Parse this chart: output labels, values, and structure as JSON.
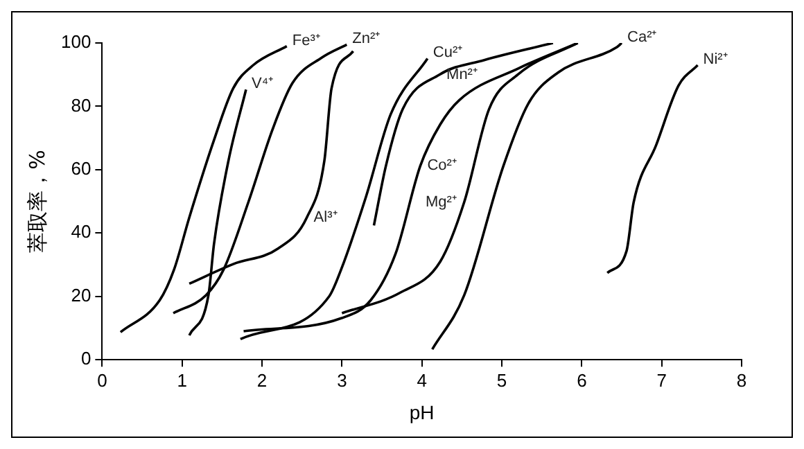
{
  "chart_data": {
    "type": "line",
    "xlabel": "pH",
    "ylabel": "萃取率，%",
    "xlim": [
      0,
      8
    ],
    "xticks": [
      0,
      1,
      2,
      3,
      4,
      5,
      6,
      7,
      8
    ],
    "ylim": [
      0,
      100
    ],
    "yticks": [
      0,
      20,
      40,
      60,
      80,
      100
    ],
    "grid": false,
    "legend": false,
    "marker": "none",
    "line_style": "solid",
    "series": [
      {
        "name": "Fe³⁺",
        "color": "#000000",
        "x": [
          0.23,
          0.72,
          0.9,
          1.09,
          1.4,
          1.64,
          1.89,
          2.31
        ],
        "values": [
          8.7,
          18.8,
          28.5,
          44.9,
          69.4,
          85.7,
          93,
          99
        ]
      },
      {
        "name": "V⁴⁺",
        "color": "#000000",
        "x": [
          1.09,
          1.33,
          1.4,
          1.58,
          1.8
        ],
        "values": [
          7.7,
          20.4,
          36.7,
          62.8,
          85.3
        ]
      },
      {
        "name": "Zn²⁺",
        "color": "#000000",
        "x": [
          0.89,
          1.3,
          1.52,
          1.83,
          2.13,
          2.38,
          2.75,
          3.06
        ],
        "values": [
          14.7,
          20.4,
          28.5,
          49.8,
          72.6,
          87.3,
          95.4,
          99.5
        ]
      },
      {
        "name": "Al³⁺",
        "color": "#000000",
        "x": [
          1.09,
          1.64,
          2.2,
          2.56,
          2.78,
          2.87,
          3.14
        ],
        "values": [
          24,
          30.2,
          35.1,
          44.9,
          62.8,
          85.7,
          97.4
        ]
      },
      {
        "name": "Cu²⁺",
        "color": "#000000",
        "x": [
          1.73,
          2.84,
          2.99,
          3.3,
          3.61,
          4.07
        ],
        "values": [
          6.5,
          20,
          28.5,
          51.4,
          77.5,
          95.1
        ]
      },
      {
        "name": "Mn²⁺",
        "color": "#000000",
        "x": [
          3.4,
          3.55,
          3.76,
          4.22,
          4.78,
          5.64
        ],
        "values": [
          42.4,
          61.2,
          79.1,
          90,
          94.6,
          100
        ]
      },
      {
        "name": "Co²⁺",
        "color": "#000000",
        "x": [
          1.77,
          2.99,
          3.36,
          3.67,
          3.98,
          4.23,
          4.47,
          5.21,
          5.95
        ],
        "values": [
          9,
          13.1,
          18.8,
          33.4,
          61.2,
          74.3,
          82,
          92,
          100
        ]
      },
      {
        "name": "Mg²⁺",
        "color": "#000000",
        "x": [
          3,
          3.73,
          4.23,
          4.53,
          4.84,
          5.2,
          5.95
        ],
        "values": [
          14.7,
          21.2,
          31,
          49.8,
          79.1,
          90,
          100
        ]
      },
      {
        "name": "Ca²⁺",
        "color": "#000000",
        "x": [
          4.13,
          4.53,
          5.02,
          5.33,
          5.7,
          6.44,
          6.5
        ],
        "values": [
          3.3,
          20.4,
          61.2,
          80.8,
          90.6,
          98.7,
          100
        ]
      },
      {
        "name": "Ni²⁺",
        "color": "#000000",
        "x": [
          6.32,
          6.56,
          6.65,
          6.93,
          7.21,
          7.45
        ],
        "values": [
          27.4,
          34.3,
          49.8,
          67.7,
          86.5,
          93
        ]
      }
    ]
  }
}
